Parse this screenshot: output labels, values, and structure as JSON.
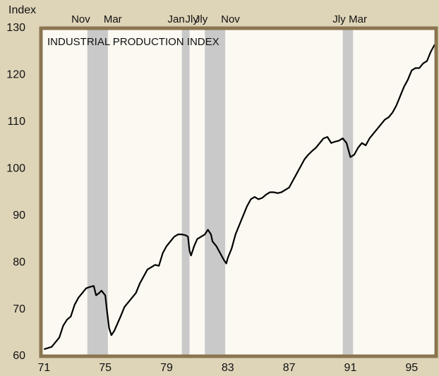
{
  "chart_data": {
    "type": "line",
    "title": "INDUSTRIAL PRODUCTION INDEX",
    "y_label": "Index",
    "xlim": [
      70.8,
      96.6
    ],
    "ylim": [
      60,
      130
    ],
    "xticks": [
      71,
      75,
      79,
      83,
      87,
      91,
      95
    ],
    "yticks": [
      60,
      70,
      80,
      90,
      100,
      110,
      120,
      130
    ],
    "grid": false,
    "recessions": [
      {
        "start": 73.83,
        "end": 75.17,
        "start_label": "Nov",
        "end_label": "Mar"
      },
      {
        "start": 80.0,
        "end": 80.5,
        "start_label": "Jan",
        "end_label": "Jly"
      },
      {
        "start": 81.5,
        "end": 82.83,
        "start_label": "Jly",
        "end_label": "Nov"
      },
      {
        "start": 90.5,
        "end": 91.17,
        "start_label": "Jly",
        "end_label": "Mar"
      }
    ],
    "recession_color": "#c9c9c9",
    "x": [
      71.0,
      71.5,
      72.0,
      72.25,
      72.5,
      72.75,
      73.0,
      73.25,
      73.5,
      73.75,
      74.0,
      74.25,
      74.4,
      74.6,
      74.75,
      75.0,
      75.1,
      75.25,
      75.4,
      75.6,
      75.8,
      76.0,
      76.25,
      76.5,
      76.75,
      77.0,
      77.25,
      77.5,
      77.75,
      78.0,
      78.25,
      78.5,
      78.75,
      79.0,
      79.25,
      79.5,
      79.75,
      80.0,
      80.25,
      80.4,
      80.5,
      80.6,
      80.8,
      81.0,
      81.25,
      81.5,
      81.7,
      81.9,
      82.0,
      82.25,
      82.5,
      82.75,
      82.9,
      83.0,
      83.25,
      83.5,
      83.75,
      84.0,
      84.25,
      84.5,
      84.75,
      85.0,
      85.25,
      85.5,
      85.75,
      86.0,
      86.25,
      86.5,
      86.75,
      87.0,
      87.25,
      87.5,
      87.75,
      88.0,
      88.25,
      88.5,
      88.75,
      89.0,
      89.25,
      89.5,
      89.75,
      90.0,
      90.25,
      90.5,
      90.75,
      91.0,
      91.25,
      91.5,
      91.75,
      92.0,
      92.25,
      92.5,
      92.75,
      93.0,
      93.25,
      93.5,
      93.75,
      94.0,
      94.25,
      94.5,
      94.75,
      95.0,
      95.25,
      95.5,
      95.75,
      96.0,
      96.25,
      96.5
    ],
    "series": [
      {
        "name": "Industrial production",
        "color": "#000000",
        "values": [
          61.5,
          62,
          64,
          66.5,
          67.8,
          68.5,
          71,
          72.5,
          73.5,
          74.5,
          74.8,
          75,
          73,
          73.5,
          74,
          73,
          70,
          66,
          64.5,
          65.5,
          67,
          68.5,
          70.5,
          71.5,
          72.5,
          73.5,
          75.5,
          77,
          78.5,
          79,
          79.5,
          79.3,
          82,
          83.5,
          84.5,
          85.5,
          86,
          86,
          85.8,
          85.5,
          82.5,
          81.5,
          83.5,
          85,
          85.5,
          86,
          87,
          86,
          84.5,
          83.5,
          82,
          80.5,
          79.8,
          81,
          83,
          86,
          88,
          90,
          92,
          93.5,
          94,
          93.5,
          93.8,
          94.5,
          95,
          95,
          94.8,
          95,
          95.5,
          96,
          97.5,
          99,
          100.5,
          102,
          103,
          103.8,
          104.5,
          105.5,
          106.5,
          106.8,
          105.5,
          105.8,
          106,
          106.5,
          105.5,
          102.5,
          103,
          104.5,
          105.5,
          105,
          106.5,
          107.5,
          108.5,
          109.5,
          110.5,
          111,
          112,
          113.5,
          115.5,
          117.5,
          119,
          121,
          121.5,
          121.5,
          122.5,
          123,
          125,
          126.5
        ]
      }
    ]
  }
}
